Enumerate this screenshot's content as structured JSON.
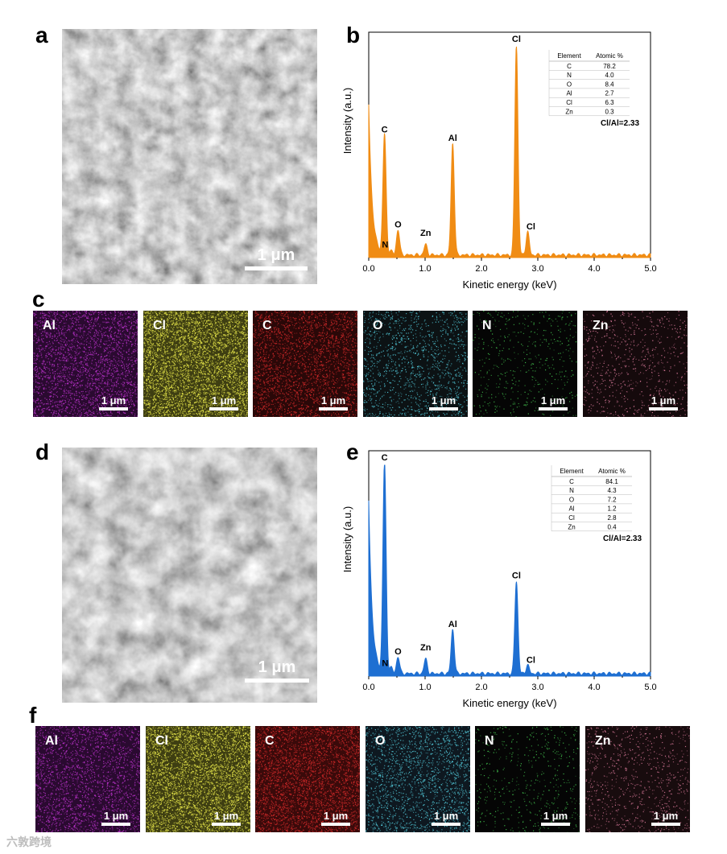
{
  "panels": {
    "a": {
      "label": "a",
      "scale_bar": "1 μm"
    },
    "b": {
      "label": "b"
    },
    "c": {
      "label": "c",
      "scale_bar": "1 μm"
    },
    "d": {
      "label": "d",
      "scale_bar": "1 μm"
    },
    "e": {
      "label": "e"
    },
    "f": {
      "label": "f",
      "scale_bar": "1 μm"
    }
  },
  "maps_c": [
    {
      "element": "Al",
      "color": "#b832c8"
    },
    {
      "element": "Cl",
      "color": "#e6e64a"
    },
    {
      "element": "C",
      "color": "#d42a2a"
    },
    {
      "element": "O",
      "color": "#52c8d8"
    },
    {
      "element": "N",
      "color": "#3fb84a"
    },
    {
      "element": "Zn",
      "color": "#d77898"
    }
  ],
  "maps_f": [
    {
      "element": "Al",
      "color": "#b832c8"
    },
    {
      "element": "Cl",
      "color": "#e6e64a"
    },
    {
      "element": "C",
      "color": "#d42a2a"
    },
    {
      "element": "O",
      "color": "#52c8d8"
    },
    {
      "element": "N",
      "color": "#3fb84a"
    },
    {
      "element": "Zn",
      "color": "#d77898"
    }
  ],
  "chart_data": [
    {
      "id": "b",
      "type": "area",
      "color": "#f08c14",
      "xlabel": "Kinetic energy (keV)",
      "ylabel": "Intensity (a.u.)",
      "xlim": [
        0,
        5
      ],
      "xticks": [
        "0.0",
        "1.0",
        "2.0",
        "3.0",
        "4.0",
        "5.0"
      ],
      "peaks": [
        {
          "label": "C",
          "x": 0.28,
          "height": 0.57
        },
        {
          "label": "N",
          "x": 0.39,
          "height": 0.02
        },
        {
          "label": "O",
          "x": 0.52,
          "height": 0.12
        },
        {
          "label": "Zn",
          "x": 1.01,
          "height": 0.05
        },
        {
          "label": "Al",
          "x": 1.49,
          "height": 0.53
        },
        {
          "label": "Cl",
          "x": 2.62,
          "height": 1.0
        },
        {
          "label": "Cl",
          "x": 2.82,
          "height": 0.11
        }
      ],
      "table": {
        "headers": [
          "Element",
          "Atomic %"
        ],
        "rows": [
          [
            "C",
            "78.2"
          ],
          [
            "N",
            "4.0"
          ],
          [
            "O",
            "8.4"
          ],
          [
            "Al",
            "2.7"
          ],
          [
            "Cl",
            "6.3"
          ],
          [
            "Zn",
            "0.3"
          ]
        ]
      },
      "ratio": "Cl/Al=2.33"
    },
    {
      "id": "e",
      "type": "area",
      "color": "#1e6fd2",
      "xlabel": "Kinetic energy (keV)",
      "ylabel": "Intensity (a.u.)",
      "xlim": [
        0,
        5
      ],
      "xticks": [
        "0.0",
        "1.0",
        "2.0",
        "3.0",
        "4.0",
        "5.0"
      ],
      "peaks": [
        {
          "label": "C",
          "x": 0.28,
          "height": 1.0
        },
        {
          "label": "N",
          "x": 0.39,
          "height": 0.03
        },
        {
          "label": "O",
          "x": 0.52,
          "height": 0.08
        },
        {
          "label": "Zn",
          "x": 1.01,
          "height": 0.07
        },
        {
          "label": "Al",
          "x": 1.49,
          "height": 0.21
        },
        {
          "label": "Cl",
          "x": 2.62,
          "height": 0.44
        },
        {
          "label": "Cl",
          "x": 2.82,
          "height": 0.04
        }
      ],
      "table": {
        "headers": [
          "Element",
          "Atomic %"
        ],
        "rows": [
          [
            "C",
            "84.1"
          ],
          [
            "N",
            "4.3"
          ],
          [
            "O",
            "7.2"
          ],
          [
            "Al",
            "1.2"
          ],
          [
            "Cl",
            "2.8"
          ],
          [
            "Zn",
            "0.4"
          ]
        ]
      },
      "ratio": "Cl/Al=2.33"
    }
  ],
  "watermark": "六敦跨境"
}
